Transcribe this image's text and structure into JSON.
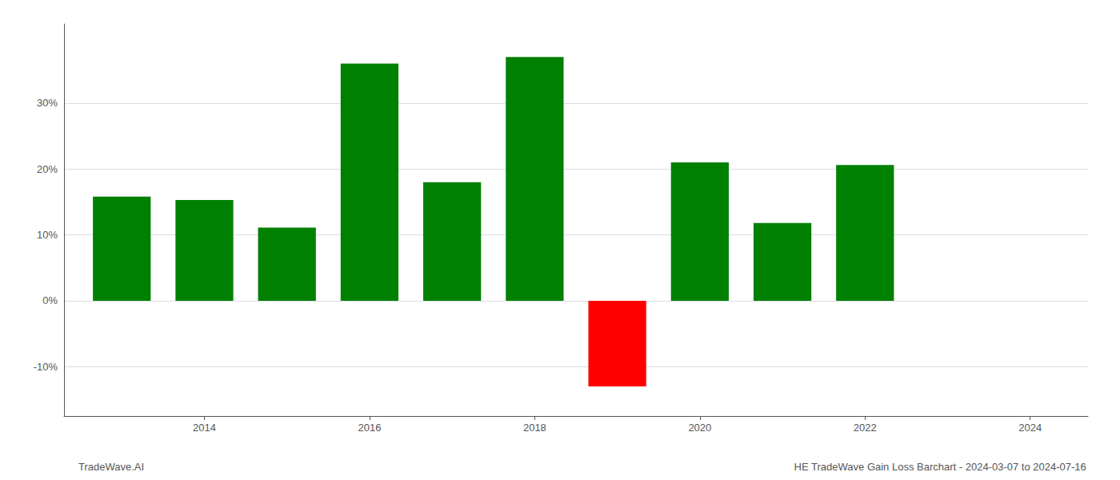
{
  "chart_data": {
    "type": "bar",
    "x": [
      2013,
      2014,
      2015,
      2016,
      2017,
      2018,
      2019,
      2020,
      2021,
      2022
    ],
    "values": [
      0.158,
      0.153,
      0.111,
      0.36,
      0.18,
      0.37,
      -0.13,
      0.21,
      0.118,
      0.206
    ],
    "colors": [
      "#008000",
      "#008000",
      "#008000",
      "#008000",
      "#008000",
      "#008000",
      "#ff0000",
      "#008000",
      "#008000",
      "#008000"
    ],
    "xlim": [
      2012.3,
      2024.7
    ],
    "xticks": [
      2014,
      2016,
      2018,
      2020,
      2022,
      2024
    ],
    "ylim": [
      -0.175,
      0.42
    ],
    "yticks": [
      {
        "value": -0.1,
        "label": "-10%"
      },
      {
        "value": 0.0,
        "label": "0%"
      },
      {
        "value": 0.1,
        "label": "10%"
      },
      {
        "value": 0.2,
        "label": "20%"
      },
      {
        "value": 0.3,
        "label": "30%"
      }
    ],
    "grid": true,
    "annotations": [
      "TradeWave.AI",
      "HE TradeWave Gain Loss Barchart - 2024-03-07 to 2024-07-16"
    ]
  }
}
